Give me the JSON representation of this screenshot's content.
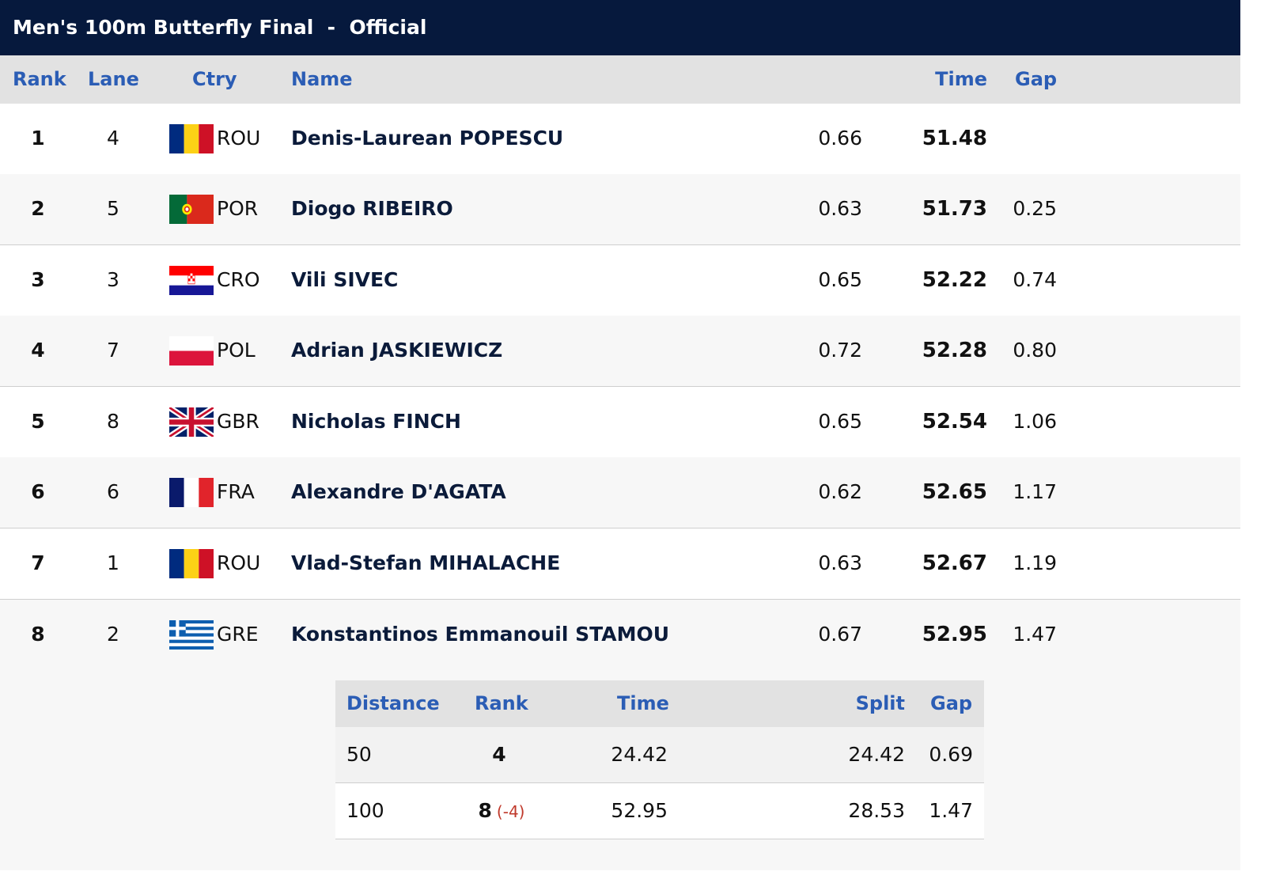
{
  "title": "Men's 100m Butterfly Final  -  Official",
  "columns": {
    "rank": "Rank",
    "lane": "Lane",
    "ctry": "Ctry",
    "name": "Name",
    "time": "Time",
    "gap": "Gap"
  },
  "results": [
    {
      "rank": "1",
      "lane": "4",
      "ctry": "ROU",
      "flag": "romania-flag-icon",
      "name": "Denis-Laurean POPESCU",
      "reaction": "0.66",
      "time": "51.48",
      "gap": ""
    },
    {
      "rank": "2",
      "lane": "5",
      "ctry": "POR",
      "flag": "portugal-flag-icon",
      "name": "Diogo RIBEIRO",
      "reaction": "0.63",
      "time": "51.73",
      "gap": "0.25"
    },
    {
      "rank": "3",
      "lane": "3",
      "ctry": "CRO",
      "flag": "croatia-flag-icon",
      "name": "Vili SIVEC",
      "reaction": "0.65",
      "time": "52.22",
      "gap": "0.74"
    },
    {
      "rank": "4",
      "lane": "7",
      "ctry": "POL",
      "flag": "poland-flag-icon",
      "name": "Adrian JASKIEWICZ",
      "reaction": "0.72",
      "time": "52.28",
      "gap": "0.80"
    },
    {
      "rank": "5",
      "lane": "8",
      "ctry": "GBR",
      "flag": "uk-flag-icon",
      "name": "Nicholas FINCH",
      "reaction": "0.65",
      "time": "52.54",
      "gap": "1.06"
    },
    {
      "rank": "6",
      "lane": "6",
      "ctry": "FRA",
      "flag": "france-flag-icon",
      "name": "Alexandre D'AGATA",
      "reaction": "0.62",
      "time": "52.65",
      "gap": "1.17"
    },
    {
      "rank": "7",
      "lane": "1",
      "ctry": "ROU",
      "flag": "romania-flag-icon",
      "name": "Vlad-Stefan MIHALACHE",
      "reaction": "0.63",
      "time": "52.67",
      "gap": "1.19"
    },
    {
      "rank": "8",
      "lane": "2",
      "ctry": "GRE",
      "flag": "greece-flag-icon",
      "name": "Konstantinos Emmanouil STAMOU",
      "reaction": "0.67",
      "time": "52.95",
      "gap": "1.47"
    }
  ],
  "splits": {
    "columns": {
      "distance": "Distance",
      "rank": "Rank",
      "time": "Time",
      "split": "Split",
      "gap": "Gap"
    },
    "rows": [
      {
        "distance": "50",
        "rank": "4",
        "rank_delta": "",
        "time": "24.42",
        "split": "24.42",
        "gap": "0.69"
      },
      {
        "distance": "100",
        "rank": "8",
        "rank_delta": "(-4)",
        "time": "52.95",
        "split": "28.53",
        "gap": "1.47"
      }
    ]
  },
  "colors": {
    "title_bg": "#06193d",
    "header_text": "#2b5db5",
    "rank_delta": "#c0392b"
  }
}
